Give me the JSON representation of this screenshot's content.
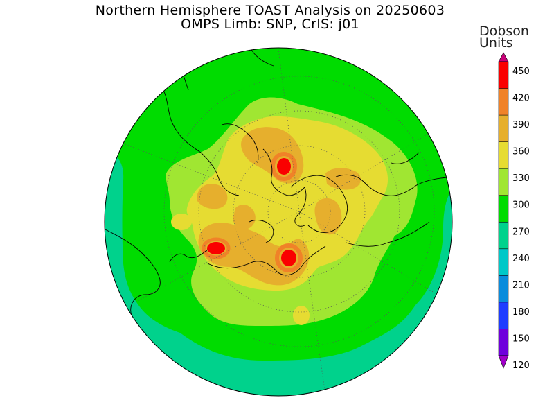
{
  "title_line1": "Northern Hemisphere TOAST Analysis on 20250603",
  "title_line2": "OMPS Limb: SNP, CrIS: j01",
  "colorbar": {
    "units_line1": "Dobson",
    "units_line2": "Units",
    "levels": [
      120,
      150,
      180,
      210,
      240,
      270,
      300,
      330,
      360,
      390,
      420,
      450
    ],
    "colors": [
      "#a000c8",
      "#6e00dc",
      "#1e3cff",
      "#0a8cdc",
      "#00c8c8",
      "#00d28c",
      "#00dc00",
      "#a0e632",
      "#e6dc32",
      "#e6af2d",
      "#f08228",
      "#fa0000",
      "#c80078"
    ]
  },
  "map": {
    "projection": "north polar stereographic",
    "contour_colors": {
      "band_240_270": "#00d28c",
      "band_270_300": "#00dc00",
      "band_300_330": "#a0e632",
      "band_330_360": "#e6dc32",
      "band_360_390": "#e6af2d",
      "band_390_420": "#f08228",
      "band_420_450": "#fa0000"
    }
  }
}
